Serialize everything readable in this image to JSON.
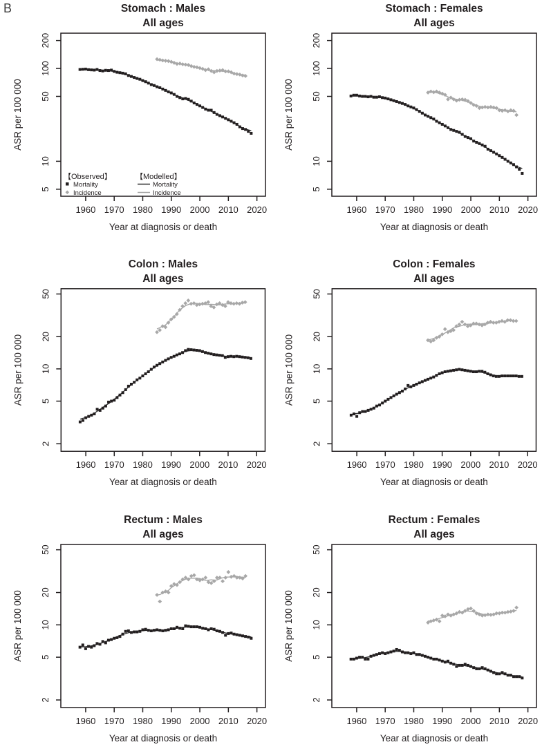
{
  "figure_label": "B",
  "colors": {
    "mortality": "#231f20",
    "incidence": "#a8a8a8",
    "modelled_mortality_line": "#2b2b2b",
    "modelled_incidence_line": "#a3a3a3",
    "axis": "#231f20",
    "background": "#ffffff"
  },
  "legend": {
    "observed_header": "【Observed】",
    "modelled_header": "【Modelled】",
    "mortality_label": "Mortality",
    "incidence_label": "Incidence"
  },
  "chart_data": [
    {
      "type": "scatter",
      "title": "Stomach : Males",
      "subtitle": "All ages",
      "xlabel": "Year at diagnosis or death",
      "ylabel": "ASR per 100 000",
      "y_scale": "log",
      "grid": false,
      "show_legend": true,
      "legend_position": "bottom-left-inside",
      "xlim": [
        1951.3,
        2023
      ],
      "ylim": [
        4.2,
        240
      ],
      "xticks": [
        1960,
        1970,
        1980,
        1990,
        2000,
        2010,
        2020
      ],
      "yticks": [
        5,
        10,
        50,
        100,
        200
      ],
      "series": [
        {
          "name": "Mortality (observed)",
          "role": "mortality",
          "marker": "square",
          "year_start": 1958,
          "values": [
            97.5,
            98,
            98.5,
            97,
            96.5,
            96,
            97.5,
            95,
            94,
            95.5,
            95,
            96,
            93,
            91,
            90,
            89,
            87.5,
            84,
            82,
            80,
            78,
            76.5,
            74,
            72,
            69.5,
            67,
            65.5,
            63.5,
            62,
            60,
            58,
            56,
            54.5,
            52.5,
            50,
            48.5,
            47,
            47.5,
            46.5,
            44.5,
            42.5,
            41,
            39.5,
            38,
            36.5,
            35.5,
            35.5,
            33.5,
            32,
            31,
            30,
            29,
            28,
            27,
            26,
            25,
            23.5,
            22.5,
            22,
            21,
            20
          ]
        },
        {
          "name": "Incidence (observed)",
          "role": "incidence",
          "marker": "diamond",
          "year_start": 1985,
          "values": [
            126,
            124,
            122,
            121,
            120,
            118,
            115,
            112,
            113,
            111,
            110,
            109,
            106,
            104,
            103,
            101,
            99,
            96,
            98,
            94,
            91,
            94,
            95,
            96,
            93,
            93,
            91,
            88,
            87,
            86,
            84,
            83
          ]
        }
      ],
      "modelled_lines": [
        "mortality",
        "incidence"
      ]
    },
    {
      "type": "scatter",
      "title": "Stomach : Females",
      "subtitle": "All ages",
      "xlabel": "Year at diagnosis or death",
      "ylabel": "ASR per 100 000",
      "y_scale": "log",
      "grid": false,
      "show_legend": false,
      "xlim": [
        1951.3,
        2023
      ],
      "ylim": [
        4.2,
        240
      ],
      "xticks": [
        1960,
        1970,
        1980,
        1990,
        2000,
        2010,
        2020
      ],
      "yticks": [
        5,
        10,
        50,
        100,
        200
      ],
      "series": [
        {
          "name": "Mortality (observed)",
          "role": "mortality",
          "marker": "square",
          "year_start": 1958,
          "values": [
            50.5,
            51.5,
            51.5,
            50.5,
            50,
            50,
            49.5,
            50,
            49,
            49,
            49.5,
            48.5,
            48,
            47,
            46,
            45,
            44,
            43,
            42,
            41,
            39.5,
            38.5,
            37.5,
            36,
            34.5,
            33,
            31.5,
            30.5,
            29.5,
            28.5,
            27,
            26,
            25,
            24,
            23,
            22,
            21.5,
            21,
            20.5,
            19.5,
            18.5,
            18,
            17.5,
            16.5,
            16,
            15.5,
            15,
            14.5,
            13.5,
            13,
            12.5,
            12,
            11.5,
            11,
            10.5,
            10,
            9.6,
            9.2,
            8.7,
            8.2,
            7.4
          ]
        },
        {
          "name": "Incidence (observed)",
          "role": "incidence",
          "marker": "diamond",
          "year_start": 1985,
          "values": [
            55,
            56.5,
            55.5,
            56.5,
            55,
            53.5,
            52,
            46.5,
            48.5,
            46.5,
            45,
            46,
            46.5,
            46,
            44.5,
            42.5,
            40.5,
            39.5,
            37.5,
            38,
            38.5,
            38,
            38.5,
            38,
            37.5,
            35.5,
            35,
            35.5,
            34.5,
            35.5,
            35,
            31.5
          ]
        }
      ],
      "modelled_lines": [
        "mortality",
        "incidence"
      ]
    },
    {
      "type": "scatter",
      "title": "Colon : Males",
      "subtitle": "All ages",
      "xlabel": "Year at diagnosis or death",
      "ylabel": "ASR per 100 000",
      "y_scale": "log",
      "grid": false,
      "show_legend": false,
      "xlim": [
        1951.3,
        2023
      ],
      "ylim": [
        1.7,
        56
      ],
      "xticks": [
        1960,
        1970,
        1980,
        1990,
        2000,
        2010,
        2020
      ],
      "yticks": [
        2,
        5,
        10,
        20,
        50
      ],
      "series": [
        {
          "name": "Mortality (observed)",
          "role": "mortality",
          "marker": "square",
          "year_start": 1958,
          "values": [
            3.2,
            3.3,
            3.5,
            3.6,
            3.7,
            3.8,
            4.2,
            4.1,
            4.3,
            4.5,
            4.9,
            5.0,
            5.1,
            5.4,
            5.7,
            6.0,
            6.4,
            6.9,
            7.2,
            7.5,
            7.9,
            8.2,
            8.6,
            9.0,
            9.4,
            9.9,
            10.4,
            10.8,
            11.2,
            11.6,
            12.0,
            12.4,
            12.8,
            13.1,
            13.5,
            13.8,
            14.2,
            14.8,
            15.2,
            15.1,
            15.0,
            14.9,
            14.8,
            14.5,
            14.2,
            14.0,
            13.8,
            13.6,
            13.5,
            13.4,
            13.3,
            12.8,
            13.0,
            13.1,
            13.0,
            13.1,
            13.0,
            12.9,
            12.8,
            12.7,
            12.5
          ]
        },
        {
          "name": "Incidence (observed)",
          "role": "incidence",
          "marker": "diamond",
          "year_start": 1985,
          "values": [
            22,
            23,
            25,
            24.5,
            27,
            29,
            30.5,
            32.5,
            35.5,
            38.5,
            41,
            43.5,
            40.5,
            41,
            39.5,
            40,
            40.5,
            41,
            42,
            38.5,
            37.5,
            40,
            41,
            39.5,
            38.5,
            42,
            41,
            40.5,
            41,
            40.5,
            41.5,
            42
          ]
        }
      ],
      "modelled_lines": [
        "mortality",
        "incidence"
      ]
    },
    {
      "type": "scatter",
      "title": "Colon : Females",
      "subtitle": "All ages",
      "xlabel": "Year at diagnosis or death",
      "ylabel": "ASR per 100 000",
      "y_scale": "log",
      "grid": false,
      "show_legend": false,
      "xlim": [
        1951.3,
        2023
      ],
      "ylim": [
        1.7,
        56
      ],
      "xticks": [
        1960,
        1970,
        1980,
        1990,
        2000,
        2010,
        2020
      ],
      "yticks": [
        2,
        5,
        10,
        20,
        50
      ],
      "series": [
        {
          "name": "Mortality (observed)",
          "role": "mortality",
          "marker": "square",
          "year_start": 1958,
          "values": [
            3.7,
            3.8,
            3.6,
            3.9,
            4.0,
            4.0,
            4.1,
            4.2,
            4.3,
            4.5,
            4.6,
            4.8,
            5.0,
            5.2,
            5.4,
            5.6,
            5.8,
            6.0,
            6.2,
            6.5,
            7.0,
            6.8,
            7.0,
            7.2,
            7.4,
            7.6,
            7.8,
            8.0,
            8.2,
            8.4,
            8.7,
            9.0,
            9.2,
            9.4,
            9.5,
            9.6,
            9.7,
            9.8,
            9.9,
            9.8,
            9.7,
            9.6,
            9.5,
            9.4,
            9.4,
            9.5,
            9.5,
            9.3,
            9.0,
            8.8,
            8.6,
            8.5,
            8.5,
            8.6,
            8.6,
            8.6,
            8.6,
            8.6,
            8.6,
            8.5,
            8.5
          ]
        },
        {
          "name": "Incidence (observed)",
          "role": "incidence",
          "marker": "diamond",
          "year_start": 1985,
          "values": [
            18.5,
            18,
            18.5,
            19.5,
            20,
            21,
            23.5,
            22,
            22.5,
            23,
            25,
            26,
            27.5,
            26,
            25,
            25.5,
            26.5,
            26.5,
            26,
            25.5,
            26,
            27,
            27.5,
            27,
            27,
            27.5,
            28,
            27.5,
            28.5,
            28.5,
            28,
            28
          ]
        }
      ],
      "modelled_lines": [
        "mortality",
        "incidence"
      ]
    },
    {
      "type": "scatter",
      "title": "Rectum : Males",
      "subtitle": "All ages",
      "xlabel": "Year at diagnosis or death",
      "ylabel": "ASR per 100 000",
      "y_scale": "log",
      "grid": false,
      "show_legend": false,
      "xlim": [
        1951.3,
        2023
      ],
      "ylim": [
        1.7,
        56
      ],
      "xticks": [
        1960,
        1970,
        1980,
        1990,
        2000,
        2010,
        2020
      ],
      "yticks": [
        2,
        5,
        10,
        20,
        50
      ],
      "series": [
        {
          "name": "Mortality (observed)",
          "role": "mortality",
          "marker": "square",
          "year_start": 1958,
          "values": [
            6.2,
            6.5,
            6.0,
            6.3,
            6.2,
            6.4,
            6.7,
            6.6,
            7.0,
            6.8,
            7.2,
            7.3,
            7.5,
            7.6,
            7.8,
            8.2,
            8.7,
            8.8,
            8.5,
            8.6,
            8.6,
            8.7,
            9.0,
            9.1,
            8.9,
            8.8,
            8.9,
            9.0,
            8.9,
            8.8,
            8.9,
            9.0,
            9.2,
            9.2,
            9.5,
            9.3,
            9.2,
            9.8,
            9.7,
            9.6,
            9.6,
            9.6,
            9.5,
            9.3,
            9.2,
            9.0,
            9.2,
            9.1,
            8.8,
            8.7,
            8.5,
            8.0,
            8.3,
            8.4,
            8.2,
            8.1,
            8.0,
            7.9,
            7.8,
            7.7,
            7.5
          ]
        },
        {
          "name": "Incidence (observed)",
          "role": "incidence",
          "marker": "diamond",
          "year_start": 1985,
          "values": [
            19,
            16.5,
            20,
            20.5,
            20,
            23,
            24,
            23.5,
            25,
            26.5,
            27.5,
            26.5,
            28.5,
            29,
            26.5,
            26,
            26.5,
            27.5,
            25,
            24.5,
            25.5,
            27.5,
            27.5,
            25.5,
            27.5,
            31,
            28,
            28.5,
            27.5,
            27.5,
            27,
            28.5
          ]
        }
      ],
      "modelled_lines": [
        "mortality",
        "incidence"
      ]
    },
    {
      "type": "scatter",
      "title": "Rectum : Females",
      "subtitle": "All ages",
      "xlabel": "Year at diagnosis or death",
      "ylabel": "ASR per 100 000",
      "y_scale": "log",
      "grid": false,
      "show_legend": false,
      "xlim": [
        1951.3,
        2023
      ],
      "ylim": [
        1.7,
        56
      ],
      "xticks": [
        1960,
        1970,
        1980,
        1990,
        2000,
        2010,
        2020
      ],
      "yticks": [
        2,
        5,
        10,
        20,
        50
      ],
      "series": [
        {
          "name": "Mortality (observed)",
          "role": "mortality",
          "marker": "square",
          "year_start": 1958,
          "values": [
            4.8,
            4.8,
            4.9,
            5.0,
            5.0,
            4.8,
            4.8,
            5.1,
            5.2,
            5.3,
            5.4,
            5.5,
            5.4,
            5.5,
            5.6,
            5.7,
            5.9,
            5.8,
            5.6,
            5.5,
            5.5,
            5.4,
            5.5,
            5.3,
            5.3,
            5.2,
            5.1,
            5.0,
            4.9,
            4.8,
            4.8,
            4.7,
            4.6,
            4.5,
            4.6,
            4.4,
            4.3,
            4.1,
            4.2,
            4.2,
            4.3,
            4.2,
            4.1,
            4.0,
            3.9,
            3.9,
            4.0,
            3.9,
            3.8,
            3.7,
            3.6,
            3.5,
            3.5,
            3.6,
            3.5,
            3.4,
            3.4,
            3.3,
            3.3,
            3.3,
            3.2
          ]
        },
        {
          "name": "Incidence (observed)",
          "role": "incidence",
          "marker": "diamond",
          "year_start": 1985,
          "values": [
            10.5,
            10.8,
            11,
            11.2,
            10.8,
            12.2,
            12,
            12.5,
            12.2,
            12.5,
            12.8,
            13.2,
            13,
            13.5,
            14,
            14.2,
            13.5,
            12.8,
            12.5,
            12.2,
            12.3,
            12.5,
            12.4,
            12.5,
            12.8,
            12.8,
            13,
            13,
            13.2,
            13.3,
            13.5,
            14.5
          ]
        }
      ],
      "modelled_lines": [
        "mortality",
        "incidence"
      ]
    }
  ]
}
